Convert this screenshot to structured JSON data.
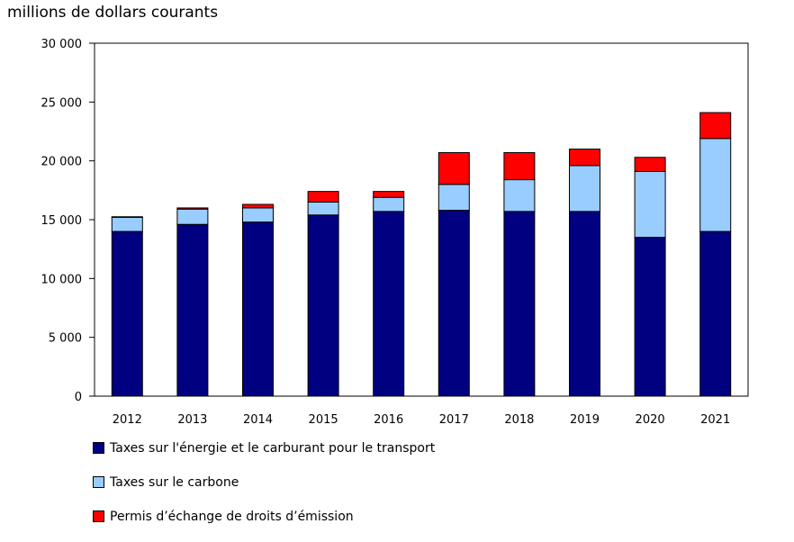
{
  "chart_data": {
    "type": "bar",
    "stacked": true,
    "title": "",
    "ylabel": "millions de dollars courants",
    "xlabel": "",
    "ylim": [
      0,
      30000
    ],
    "yticks": [
      0,
      5000,
      10000,
      15000,
      20000,
      25000,
      30000
    ],
    "ytick_labels": [
      "0",
      "5 000",
      "10 000",
      "15 000",
      "20 000",
      "25 000",
      "30 000"
    ],
    "categories": [
      "2012",
      "2013",
      "2014",
      "2015",
      "2016",
      "2017",
      "2018",
      "2019",
      "2020",
      "2021"
    ],
    "series": [
      {
        "name": "Taxes sur l'énergie et le carburant pour le transport",
        "color": "#000080",
        "values": [
          14000,
          14600,
          14800,
          15400,
          15700,
          15800,
          15700,
          15700,
          13500,
          14000
        ]
      },
      {
        "name": "Taxes sur le carbone",
        "color": "#99ccff",
        "values": [
          1200,
          1300,
          1200,
          1100,
          1200,
          2200,
          2700,
          3900,
          5600,
          7900
        ]
      },
      {
        "name": "Permis d’échange de droits d’émission",
        "color": "#ff0000",
        "values": [
          50,
          100,
          300,
          900,
          500,
          2700,
          2300,
          1400,
          1200,
          2200
        ]
      }
    ],
    "legend_position": "bottom-left",
    "grid": false
  }
}
